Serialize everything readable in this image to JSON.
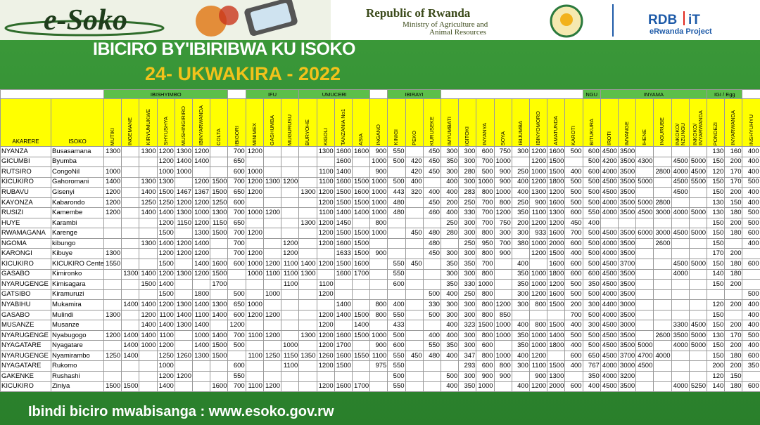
{
  "header": {
    "logo": "e-Soko",
    "republic": "Republic of Rwanda",
    "ministry_line1": "Ministry of Agriculture and",
    "ministry_line2": "Animal Resources",
    "partner_1": "RDB",
    "partner_2": "iT",
    "project": "eRwanda Project"
  },
  "title": "IBICIRO BY'IBIRIBWA KU ISOKO",
  "date": "24- UKWAKIRA -  2022",
  "footer": "Ibindi biciro mwabisanga : www.esoko.gov.rw",
  "table": {
    "district_header": "AKARERE",
    "market_header": "ISOKO",
    "groups": [
      "IBISHYIMBO",
      "IFU",
      "UMUCERI",
      "IBIRAYI",
      "NGU",
      "INYAMA",
      "IGI / Egg"
    ],
    "columns": [
      "MUTIKI",
      "INGEMANE",
      "KIRYUMUKWE",
      "SHYUSHYA",
      "MUSHINGIRIRO",
      "IBINYARWANDA",
      "COLTA",
      "IBIGORI",
      "MINIMEX",
      "GASHUMBA",
      "MUGURUSU",
      "BURYOHE",
      "KIGOLI",
      "TANZANIA No1",
      "ASIA",
      "INGANO",
      "KINIGI",
      "PEKO",
      "KURUSEKE",
      "IMYUMBATI",
      "IGITOKI",
      "INYANYA",
      "SOYA",
      "IBIJUMBA",
      "IBINYOMORO",
      "AMATUNDA",
      "KAROTI",
      "BITUKURA",
      "IROTI",
      "IMVANGE",
      "IHENE",
      "INGURUBE",
      "INKOKO/ NZUNGU",
      "INKOKO/ INYARWANDA",
      "PONDEZI",
      "INYARWANDA",
      "INSHYUHYU"
    ],
    "rows": [
      {
        "district": "NYANZA",
        "market": "Busasamana",
        "prices": [
          1300,
          null,
          1300,
          1200,
          1300,
          1200,
          null,
          700,
          1200,
          null,
          null,
          null,
          1300,
          1600,
          1600,
          900,
          550,
          null,
          450,
          300,
          300,
          600,
          750,
          300,
          1200,
          1600,
          500,
          600,
          4500,
          3500,
          null,
          null,
          null,
          null,
          130,
          160,
          400
        ]
      },
      {
        "district": "GICUMBI",
        "market": "Byumba",
        "prices": [
          null,
          null,
          null,
          1200,
          1400,
          1400,
          null,
          650,
          null,
          null,
          null,
          null,
          null,
          1600,
          null,
          1000,
          500,
          420,
          450,
          350,
          300,
          700,
          1000,
          null,
          1200,
          1500,
          null,
          500,
          4200,
          3500,
          4300,
          null,
          4500,
          5000,
          150,
          200,
          400
        ]
      },
      {
        "district": "RUTSIRO",
        "market": "CongoNil",
        "prices": [
          1000,
          null,
          null,
          1000,
          1000,
          null,
          null,
          600,
          1000,
          null,
          null,
          null,
          1100,
          1400,
          null,
          900,
          null,
          420,
          450,
          300,
          280,
          500,
          900,
          250,
          1000,
          1500,
          400,
          600,
          4000,
          3500,
          null,
          2800,
          4000,
          4500,
          120,
          170,
          400
        ]
      },
      {
        "district": "KICUKIRO",
        "market": "Gahoromani",
        "prices": [
          1400,
          null,
          1300,
          1300,
          null,
          1200,
          1500,
          700,
          1200,
          1300,
          1200,
          null,
          1100,
          1600,
          1500,
          1000,
          500,
          400,
          null,
          400,
          300,
          1000,
          900,
          400,
          1200,
          1800,
          500,
          500,
          4500,
          3500,
          5000,
          null,
          4500,
          5500,
          150,
          170,
          500
        ]
      },
      {
        "district": "RUBAVU",
        "market": "Gisenyi",
        "prices": [
          1200,
          null,
          1400,
          1500,
          1467,
          1367,
          1500,
          650,
          1200,
          null,
          null,
          1300,
          1200,
          1500,
          1600,
          1000,
          443,
          320,
          400,
          400,
          283,
          800,
          1000,
          400,
          1300,
          1200,
          500,
          500,
          4500,
          3500,
          null,
          null,
          4500,
          null,
          150,
          200,
          400
        ]
      },
      {
        "district": "KAYONZA",
        "market": "Kabarondo",
        "prices": [
          1200,
          null,
          1250,
          1250,
          1200,
          1200,
          1250,
          600,
          null,
          null,
          null,
          null,
          1200,
          1500,
          1500,
          1000,
          480,
          null,
          450,
          200,
          250,
          700,
          800,
          250,
          900,
          1600,
          500,
          500,
          4000,
          3500,
          5000,
          2800,
          null,
          null,
          130,
          150,
          400
        ]
      },
      {
        "district": "RUSIZI",
        "market": "Kamembe",
        "prices": [
          1200,
          null,
          1400,
          1400,
          1300,
          1000,
          1300,
          700,
          1000,
          1200,
          null,
          null,
          1100,
          1400,
          1400,
          1000,
          480,
          null,
          460,
          400,
          330,
          700,
          1200,
          350,
          1100,
          1300,
          600,
          550,
          4000,
          3500,
          4500,
          3000,
          4000,
          5000,
          130,
          180,
          500
        ]
      },
      {
        "district": "HUYE",
        "market": "Karambi",
        "prices": [
          null,
          null,
          null,
          1200,
          1150,
          1200,
          1150,
          650,
          null,
          null,
          null,
          1300,
          1200,
          1450,
          null,
          800,
          null,
          null,
          null,
          250,
          300,
          700,
          750,
          200,
          1200,
          1200,
          450,
          400,
          null,
          null,
          null,
          null,
          null,
          null,
          150,
          200,
          500
        ]
      },
      {
        "district": "RWAMAGANA",
        "market": "Karenge",
        "prices": [
          null,
          null,
          null,
          1500,
          null,
          1300,
          1500,
          700,
          1200,
          null,
          null,
          null,
          1200,
          1500,
          1500,
          1000,
          null,
          450,
          480,
          280,
          300,
          800,
          300,
          300,
          933,
          1600,
          700,
          500,
          4500,
          3500,
          6000,
          3000,
          4500,
          5000,
          150,
          180,
          600
        ]
      },
      {
        "district": "NGOMA",
        "market": "kibungo",
        "prices": [
          null,
          null,
          1300,
          1400,
          1200,
          1400,
          null,
          700,
          null,
          null,
          1200,
          null,
          1200,
          1600,
          1500,
          null,
          null,
          null,
          480,
          null,
          250,
          950,
          700,
          380,
          1000,
          2000,
          600,
          500,
          4000,
          3500,
          null,
          2600,
          null,
          null,
          150,
          null,
          400
        ]
      },
      {
        "district": "KARONGI",
        "market": "Kibuye",
        "prices": [
          1300,
          null,
          null,
          1200,
          1200,
          1200,
          null,
          700,
          1200,
          null,
          1200,
          null,
          null,
          1633,
          1500,
          900,
          null,
          null,
          450,
          300,
          300,
          800,
          900,
          null,
          1200,
          1500,
          400,
          500,
          4000,
          3500,
          null,
          null,
          null,
          null,
          170,
          200,
          null
        ]
      },
      {
        "district": "KICUKIRO",
        "market": "KICUKIRO Center",
        "prices": [
          1550,
          null,
          null,
          1500,
          null,
          1400,
          1600,
          600,
          1000,
          1200,
          1100,
          1400,
          1200,
          1500,
          1600,
          null,
          550,
          450,
          null,
          350,
          350,
          700,
          null,
          400,
          null,
          1600,
          600,
          500,
          4500,
          3700,
          null,
          null,
          4500,
          5000,
          150,
          180,
          600
        ]
      },
      {
        "district": "GASABO",
        "market": "Kimironko",
        "prices": [
          null,
          1300,
          1400,
          1200,
          1300,
          1200,
          1500,
          null,
          1000,
          1100,
          1100,
          1300,
          null,
          1600,
          1700,
          null,
          550,
          null,
          null,
          300,
          300,
          800,
          null,
          350,
          1000,
          1800,
          600,
          600,
          4500,
          3500,
          null,
          null,
          4000,
          null,
          140,
          180,
          null
        ]
      },
      {
        "district": "NYARUGENGE",
        "market": "Kimisagara",
        "prices": [
          null,
          null,
          1500,
          1400,
          null,
          null,
          1700,
          null,
          null,
          null,
          1100,
          null,
          1100,
          null,
          null,
          null,
          600,
          null,
          null,
          350,
          330,
          1000,
          null,
          350,
          1000,
          1200,
          500,
          350,
          4500,
          3500,
          null,
          null,
          null,
          null,
          150,
          200,
          null
        ]
      },
      {
        "district": "GATSIBO",
        "market": "Kiramuruzi",
        "prices": [
          null,
          null,
          null,
          1500,
          null,
          1800,
          null,
          500,
          null,
          1000,
          null,
          null,
          1200,
          null,
          null,
          null,
          null,
          null,
          500,
          400,
          250,
          800,
          null,
          300,
          1200,
          1600,
          500,
          500,
          4000,
          3500,
          null,
          null,
          null,
          null,
          null,
          null,
          500
        ]
      },
      {
        "district": "NYABIHU",
        "market": "Mukamira",
        "prices": [
          null,
          1400,
          1400,
          1200,
          1300,
          1400,
          1300,
          650,
          1000,
          null,
          null,
          null,
          null,
          1400,
          null,
          800,
          400,
          null,
          330,
          300,
          300,
          800,
          1200,
          300,
          800,
          1500,
          200,
          300,
          4400,
          3000,
          null,
          null,
          null,
          null,
          120,
          200,
          400
        ]
      },
      {
        "district": "GASABO",
        "market": "Mulindi",
        "prices": [
          1300,
          null,
          1200,
          1100,
          1400,
          1100,
          1400,
          600,
          1200,
          1200,
          null,
          null,
          1200,
          1400,
          1500,
          800,
          550,
          null,
          500,
          300,
          300,
          800,
          850,
          null,
          null,
          null,
          700,
          500,
          4000,
          3500,
          null,
          null,
          null,
          null,
          150,
          null,
          400
        ]
      },
      {
        "district": "MUSANZE",
        "market": "Musanze",
        "prices": [
          null,
          null,
          1400,
          1400,
          1300,
          1400,
          null,
          1200,
          null,
          null,
          null,
          null,
          1200,
          null,
          1400,
          null,
          433,
          null,
          null,
          400,
          323,
          1500,
          1000,
          400,
          800,
          1500,
          400,
          300,
          4500,
          3000,
          null,
          null,
          3300,
          4500,
          150,
          200,
          400
        ]
      },
      {
        "district": "NYARUGENGE",
        "market": "Nyabugogo",
        "prices": [
          1200,
          1400,
          1400,
          1100,
          null,
          1000,
          1400,
          700,
          1100,
          1200,
          null,
          1300,
          1200,
          1600,
          1500,
          1000,
          500,
          null,
          400,
          400,
          300,
          800,
          1000,
          350,
          1000,
          1400,
          500,
          500,
          4500,
          3500,
          null,
          2600,
          3500,
          5000,
          130,
          170,
          500
        ]
      },
      {
        "district": "NYAGATARE",
        "market": "Nyagatare",
        "prices": [
          null,
          1400,
          1000,
          1200,
          null,
          1400,
          1500,
          500,
          null,
          null,
          1000,
          null,
          1200,
          1700,
          null,
          900,
          600,
          null,
          550,
          350,
          300,
          600,
          null,
          350,
          1000,
          1800,
          400,
          500,
          4500,
          3500,
          5000,
          null,
          4000,
          5000,
          150,
          200,
          400
        ]
      },
      {
        "district": "NYARUGENGE",
        "market": "Nyamirambo",
        "prices": [
          1250,
          1400,
          null,
          1250,
          1260,
          1300,
          1500,
          null,
          1100,
          1250,
          1150,
          1350,
          1260,
          1600,
          1550,
          1100,
          550,
          450,
          480,
          400,
          347,
          800,
          1000,
          400,
          1200,
          null,
          600,
          650,
          4500,
          3700,
          4700,
          4000,
          null,
          null,
          150,
          180,
          600
        ]
      },
      {
        "district": "NYAGATARE",
        "market": "Rukomo",
        "prices": [
          null,
          null,
          null,
          1000,
          null,
          null,
          null,
          600,
          null,
          null,
          1100,
          null,
          1200,
          1500,
          null,
          975,
          550,
          null,
          null,
          null,
          293,
          600,
          800,
          300,
          1100,
          1500,
          400,
          767,
          4000,
          3000,
          4500,
          null,
          null,
          null,
          200,
          200,
          350
        ]
      },
      {
        "district": "GAKENKE",
        "market": "Rushashi",
        "prices": [
          null,
          null,
          null,
          1200,
          1200,
          null,
          null,
          550,
          null,
          null,
          null,
          null,
          null,
          null,
          null,
          null,
          500,
          null,
          null,
          500,
          300,
          900,
          900,
          null,
          900,
          1300,
          null,
          350,
          4000,
          3200,
          null,
          null,
          null,
          null,
          120,
          150,
          null
        ]
      },
      {
        "district": "KICUKIRO",
        "market": "Ziniya",
        "prices": [
          1500,
          1500,
          null,
          1400,
          null,
          null,
          1600,
          700,
          1100,
          1200,
          null,
          null,
          1200,
          1600,
          1700,
          null,
          550,
          null,
          null,
          400,
          350,
          1000,
          null,
          400,
          1200,
          2000,
          600,
          400,
          4500,
          3500,
          null,
          null,
          4000,
          5250,
          140,
          180,
          600
        ]
      }
    ]
  }
}
